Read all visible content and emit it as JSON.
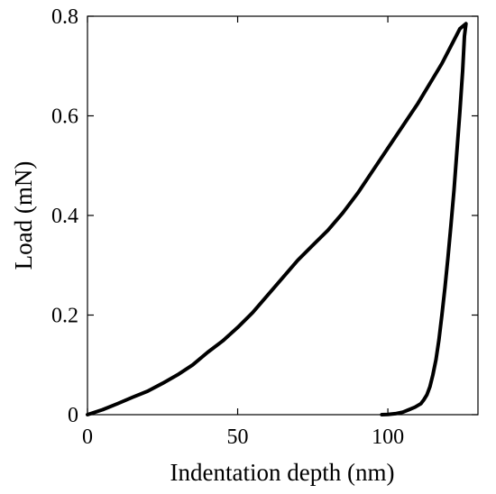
{
  "chart_data": {
    "type": "line",
    "title": "",
    "xlabel": "Indentation depth (nm)",
    "ylabel": "Load (mN)",
    "xlim": [
      0,
      130
    ],
    "ylim": [
      0,
      0.8
    ],
    "xticks": [
      0,
      50,
      100
    ],
    "yticks": [
      0,
      0.2,
      0.4,
      0.6,
      0.8
    ],
    "xtick_labels": [
      "0",
      "50",
      "100"
    ],
    "ytick_labels": [
      "0",
      "0.2",
      "0.4",
      "0.6",
      "0.8"
    ],
    "grid": false,
    "series": [
      {
        "name": "",
        "color": "#000000",
        "x": [
          0,
          5,
          10,
          15,
          20,
          25,
          30,
          35,
          40,
          45,
          50,
          55,
          60,
          65,
          70,
          75,
          80,
          85,
          90,
          95,
          100,
          105,
          110,
          115,
          118,
          121,
          124,
          126,
          126,
          125.5,
          124.9,
          124,
          123,
          122,
          121,
          120,
          119,
          118,
          117,
          116,
          115,
          114,
          113,
          112,
          111,
          109,
          107,
          105,
          102.5,
          100,
          98
        ],
        "y": [
          0,
          0.01,
          0.022,
          0.035,
          0.047,
          0.063,
          0.08,
          0.1,
          0.125,
          0.148,
          0.175,
          0.205,
          0.24,
          0.275,
          0.31,
          0.34,
          0.37,
          0.405,
          0.445,
          0.49,
          0.535,
          0.58,
          0.625,
          0.675,
          0.705,
          0.74,
          0.775,
          0.785,
          0.785,
          0.76,
          0.69,
          0.61,
          0.53,
          0.45,
          0.38,
          0.315,
          0.255,
          0.2,
          0.15,
          0.11,
          0.08,
          0.056,
          0.04,
          0.03,
          0.022,
          0.015,
          0.01,
          0.005,
          0.002,
          0.0005,
          0
        ]
      }
    ]
  }
}
